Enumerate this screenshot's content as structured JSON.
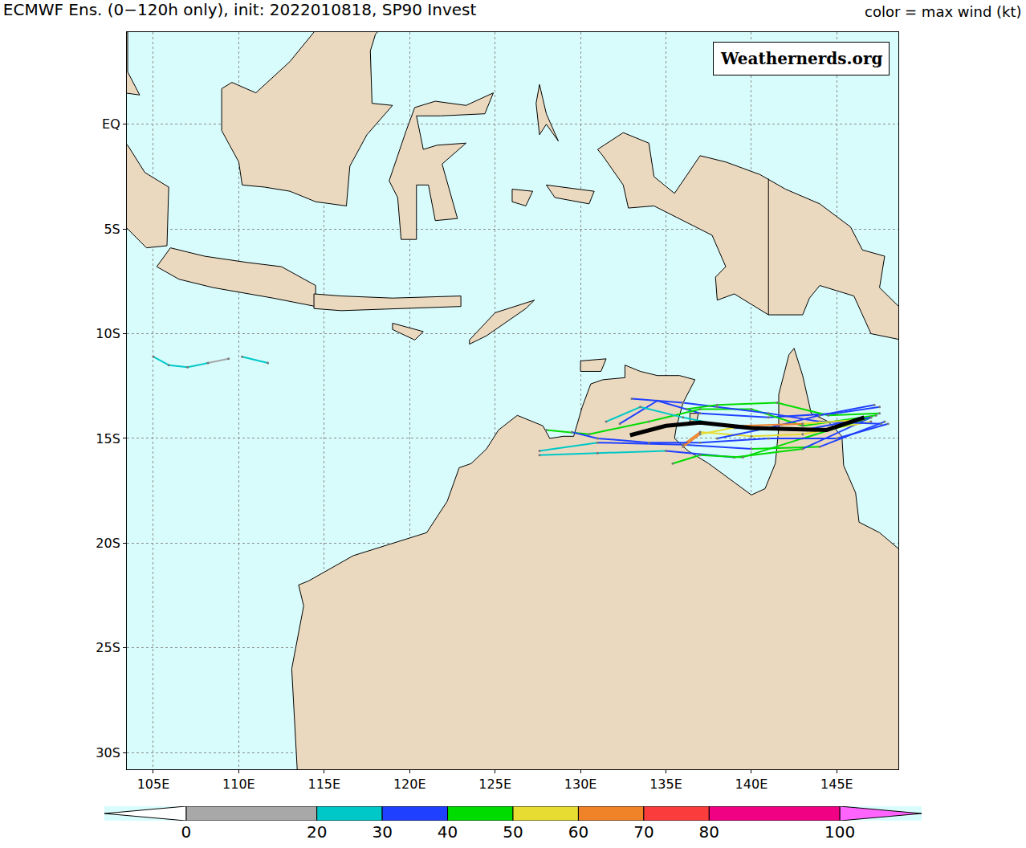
{
  "chart_data": {
    "type": "map",
    "title": "ECMWF Ens. (0−120h only), init: 2022010818, SP90 Invest",
    "color_label": "color = max wind (kt)",
    "watermark": "Weathernerds.org",
    "grid": true,
    "xlim": [
      103.45,
      148.6
    ],
    "ylim": [
      -30.8,
      4.4
    ],
    "xticks": [
      {
        "value": 105,
        "label": "105E"
      },
      {
        "value": 110,
        "label": "110E"
      },
      {
        "value": 115,
        "label": "115E"
      },
      {
        "value": 120,
        "label": "120E"
      },
      {
        "value": 125,
        "label": "125E"
      },
      {
        "value": 130,
        "label": "130E"
      },
      {
        "value": 135,
        "label": "135E"
      },
      {
        "value": 140,
        "label": "140E"
      },
      {
        "value": 145,
        "label": "145E"
      }
    ],
    "yticks": [
      {
        "value": 0,
        "label": "EQ"
      },
      {
        "value": -5,
        "label": "5S"
      },
      {
        "value": -10,
        "label": "10S"
      },
      {
        "value": -15,
        "label": "15S"
      },
      {
        "value": -20,
        "label": "20S"
      },
      {
        "value": -25,
        "label": "25S"
      },
      {
        "value": -30,
        "label": "30S"
      }
    ],
    "land": [
      {
        "lon": [
          113.5,
          114.1,
          116.7,
          119,
          121,
          122.2,
          122.9,
          123.6,
          124.5,
          125.2,
          126.3,
          127.8,
          128.2,
          129,
          129.6,
          130.1,
          130.6,
          131.3,
          132.6,
          132.6,
          133.5,
          134.5,
          135.8,
          136.7,
          136.0,
          135.6,
          135.5,
          136.3,
          137.5,
          139.0,
          140.0,
          140.8,
          141.4,
          141.6,
          141.6,
          142.2,
          142.5,
          143.0,
          143.5,
          144.5,
          145.3,
          145.4,
          146.1,
          146.3,
          147.5,
          148.8,
          150,
          150,
          113.5,
          113.1,
          113.8,
          113.5
        ],
        "lat": [
          -22,
          -21.8,
          -20.6,
          -20,
          -19.5,
          -18,
          -16.4,
          -16.2,
          -15.5,
          -14.6,
          -13.9,
          -14.4,
          -15.0,
          -14.9,
          -14.9,
          -13.5,
          -12.4,
          -12.2,
          -12.1,
          -11.5,
          -11.8,
          -12.0,
          -12.0,
          -12.2,
          -13.3,
          -14.5,
          -15.0,
          -15.6,
          -16.2,
          -17.1,
          -17.7,
          -17.4,
          -16.2,
          -14.5,
          -12.9,
          -11.0,
          -10.7,
          -12,
          -13.8,
          -14.2,
          -14.9,
          -16.3,
          -17.6,
          -19.0,
          -19.5,
          -20.4,
          -21,
          -32,
          -32,
          -26,
          -23,
          -22
        ]
      },
      {
        "lon": [
          130,
          131.5,
          131.2,
          130,
          130
        ],
        "lat": [
          -11.3,
          -11.2,
          -11.8,
          -11.8,
          -11.3
        ]
      },
      {
        "lon": [
          136.4,
          136.9,
          136.8,
          136.4,
          136.4
        ],
        "lat": [
          -13.8,
          -13.8,
          -14.2,
          -14.2,
          -13.8
        ]
      },
      {
        "lon": [
          131,
          132.5,
          134,
          134.3,
          135.5,
          137,
          138.5,
          140.5,
          142,
          144,
          145.8,
          146.5,
          147.8,
          147.5,
          149,
          150,
          150,
          147,
          146,
          144,
          143.4,
          143,
          141,
          139,
          138,
          137.9,
          138.5,
          137.7,
          136,
          134.3,
          132.8,
          132.5,
          131.3,
          131
        ],
        "lat": [
          -1.2,
          -0.4,
          -0.9,
          -2.5,
          -3.3,
          -1.5,
          -1.8,
          -2.4,
          -3.1,
          -3.8,
          -4.9,
          -6,
          -6.3,
          -7.8,
          -9,
          -9.5,
          -10.5,
          -10,
          -8.2,
          -7.7,
          -8.3,
          -9.1,
          -9.1,
          -8.1,
          -8.4,
          -7.3,
          -6.8,
          -5.3,
          -4.6,
          -3.9,
          -4.0,
          -2.9,
          -1.5,
          -1.2
        ]
      },
      {
        "lon": [
          109,
          109.6,
          111,
          113,
          114.5,
          116,
          117.4,
          119.2,
          118,
          117.7,
          117.8,
          119,
          117.5,
          116.5,
          116.3,
          114.5,
          113,
          111.5,
          110.2,
          110,
          109,
          109
        ],
        "lat": [
          1.7,
          2,
          1.5,
          3,
          4.5,
          5.5,
          6.9,
          5.3,
          4.3,
          3.5,
          1.0,
          0.9,
          -0.5,
          -2,
          -3.9,
          -3.7,
          -3.2,
          -3,
          -2.9,
          -1.8,
          -0.3,
          1.7
        ]
      },
      {
        "lon": [
          119.5,
          119.3,
          118.8,
          119.8,
          120.3,
          121.5,
          123.3,
          124.9,
          124.4,
          121.8,
          120.4,
          120.8,
          121.6,
          123.3,
          121.9,
          122.8,
          121.5,
          121.1,
          120.4,
          120.4,
          119.5
        ],
        "lat": [
          -5.5,
          -3.5,
          -2.7,
          -0.3,
          0.8,
          1.1,
          0.9,
          1.5,
          0.5,
          0.4,
          0.4,
          -1.2,
          -1.0,
          -0.9,
          -1.9,
          -4.5,
          -4.6,
          -2.9,
          -2.9,
          -5.5,
          -5.5
        ]
      },
      {
        "lon": [
          105.2,
          106,
          108,
          110.5,
          112.5,
          114.5,
          114.5,
          112,
          108.5,
          106.5,
          105.2
        ],
        "lat": [
          -6.8,
          -5.9,
          -6.3,
          -6.6,
          -6.8,
          -7.7,
          -8.7,
          -8.3,
          -7.8,
          -7.4,
          -6.8
        ]
      },
      {
        "lon": [
          102,
          103.5,
          104.5,
          105.9,
          105.8,
          104.6,
          103.5,
          102,
          102
        ],
        "lat": [
          0,
          -1,
          -2.3,
          -3,
          -5.8,
          -5.9,
          -5,
          -4,
          0
        ]
      },
      {
        "lon": [
          102,
          103.5,
          103.5,
          104.2,
          103.3,
          102
        ],
        "lat": [
          5,
          4.4,
          2.5,
          1.4,
          1.5,
          2.5
        ]
      },
      {
        "lon": [
          114.4,
          116,
          119,
          123,
          123,
          119,
          116,
          114.4,
          114.4
        ],
        "lat": [
          -8.1,
          -8.2,
          -8.3,
          -8.2,
          -8.7,
          -8.8,
          -8.9,
          -8.8,
          -8.1
        ]
      },
      {
        "lon": [
          123.5,
          125,
          127.3,
          126.8,
          124.5,
          123.5,
          123.5
        ],
        "lat": [
          -10.3,
          -9,
          -8.4,
          -8.8,
          -10.1,
          -10.5,
          -10.3
        ]
      },
      {
        "lon": [
          119,
          120.8,
          120.3,
          119,
          119
        ],
        "lat": [
          -9.5,
          -9.9,
          -10.3,
          -9.8,
          -9.5
        ]
      },
      {
        "lon": [
          127.6,
          128,
          128.7,
          128,
          127.6,
          127.4,
          127.6
        ],
        "lat": [
          1.9,
          0.5,
          -0.8,
          0,
          -0.5,
          1,
          1.9
        ]
      },
      {
        "lon": [
          128,
          130.8,
          130.5,
          128.5,
          128
        ],
        "lat": [
          -2.9,
          -3.2,
          -3.8,
          -3.5,
          -2.9
        ]
      },
      {
        "lon": [
          126,
          127.2,
          126.8,
          126,
          126
        ],
        "lat": [
          -3.1,
          -3.2,
          -3.9,
          -3.7,
          -3.1
        ]
      }
    ],
    "borders": [
      {
        "lon": [
          141,
          141
        ],
        "lat": [
          -2.6,
          -9.1
        ]
      }
    ],
    "tracks": [
      {
        "lon": [
          147.5,
          145,
          141,
          137,
          134.5,
          132.3
        ],
        "lat": [
          -13.5,
          -13.8,
          -14.0,
          -13.8,
          -13.2,
          -14.3
        ],
        "wind": [
          35,
          35,
          35,
          35,
          35,
          35
        ]
      },
      {
        "lon": [
          147.8,
          144,
          140,
          136,
          131,
          127.6
        ],
        "lat": [
          -14.2,
          -15.4,
          -15.5,
          -15.3,
          -15.2,
          -15.6
        ],
        "wind": [
          35,
          35,
          45,
          35,
          30,
          25
        ]
      },
      {
        "lon": [
          147.3,
          143,
          140,
          137,
          134,
          130.5,
          128
        ],
        "lat": [
          -13.9,
          -14.4,
          -13.6,
          -13.6,
          -14.2,
          -14.8,
          -14.6
        ],
        "wind": [
          45,
          45,
          45,
          45,
          45,
          45,
          45
        ]
      },
      {
        "lon": [
          147,
          143,
          139,
          135,
          131,
          127.6
        ],
        "lat": [
          -14,
          -15.5,
          -15.9,
          -15.6,
          -15.7,
          -15.8
        ],
        "wind": [
          35,
          35,
          45,
          35,
          25,
          25
        ]
      },
      {
        "lon": [
          147,
          143,
          140,
          137,
          136
        ],
        "lat": [
          -14.2,
          -14.8,
          -14.9,
          -14.7,
          -15.3
        ],
        "wind": [
          45,
          55,
          55,
          55,
          65
        ]
      },
      {
        "lon": [
          147,
          143,
          139.5,
          137,
          135.4
        ],
        "lat": [
          -14,
          -15,
          -15.9,
          -15.8,
          -16.2
        ],
        "wind": [
          40,
          45,
          45,
          45,
          45
        ]
      },
      {
        "lon": [
          147.6,
          144,
          141,
          138,
          136,
          133
        ],
        "lat": [
          -14.3,
          -14.2,
          -13.8,
          -13.5,
          -13.3,
          -13.1
        ],
        "wind": [
          35,
          35,
          35,
          35,
          35,
          35
        ]
      },
      {
        "lon": [
          147,
          143,
          139,
          136,
          133.5,
          131.5
        ],
        "lat": [
          -14.0,
          -14.6,
          -14.5,
          -14.0,
          -13.5,
          -14.2
        ],
        "wind": [
          30,
          35,
          30,
          25,
          25,
          25
        ]
      },
      {
        "lon": [
          147.5,
          144.5,
          141.5,
          138,
          136.2
        ],
        "lat": [
          -13.8,
          -13.9,
          -13.3,
          -13.4,
          -13.6
        ],
        "wind": [
          40,
          45,
          45,
          45,
          45
        ]
      },
      {
        "lon": [
          148,
          145,
          141,
          137,
          134,
          131,
          129.5
        ],
        "lat": [
          -14.3,
          -15.0,
          -15.0,
          -15.2,
          -15.2,
          -15.0,
          -14.7
        ],
        "wind": [
          35,
          35,
          35,
          35,
          35,
          35,
          35
        ]
      },
      {
        "lon": [
          147.2,
          144,
          141,
          138
        ],
        "lat": [
          -13.4,
          -13.9,
          -14.5,
          -15.0
        ],
        "wind": [
          35,
          35,
          35,
          35
        ]
      },
      {
        "lon": [
          146.5,
          143,
          139.5,
          137,
          136
        ],
        "lat": [
          -14.1,
          -14.3,
          -14.4,
          -14.8,
          -15.4
        ],
        "wind": [
          45,
          55,
          65,
          55,
          65
        ]
      },
      {
        "lon": [
          105,
          105.9,
          107,
          108.2,
          109.4
        ],
        "lat": [
          -11.1,
          -11.5,
          -11.6,
          -11.4,
          -11.2
        ],
        "wind": [
          25,
          25,
          25,
          25,
          15
        ]
      },
      {
        "lon": [
          110.2,
          111.7
        ],
        "lat": [
          -11.1,
          -11.4
        ],
        "wind": [
          25,
          25
        ]
      }
    ],
    "mean": {
      "lon": [
        146.6,
        144.4,
        140,
        137,
        135,
        132.9
      ],
      "lat": [
        -14.0,
        -14.6,
        -14.5,
        -14.25,
        -14.4,
        -14.85
      ]
    },
    "colorbar": {
      "clim": [
        0,
        100
      ],
      "ticks": [
        0,
        20,
        30,
        40,
        50,
        60,
        70,
        80,
        100
      ],
      "colors": [
        "#a8a8a8",
        "#00c8c8",
        "#2040ff",
        "#00dc00",
        "#e6dc32",
        "#f08228",
        "#fa3c3c",
        "#f00082"
      ],
      "under_color": "#ffffff",
      "over_color": "#ff64ff"
    }
  }
}
